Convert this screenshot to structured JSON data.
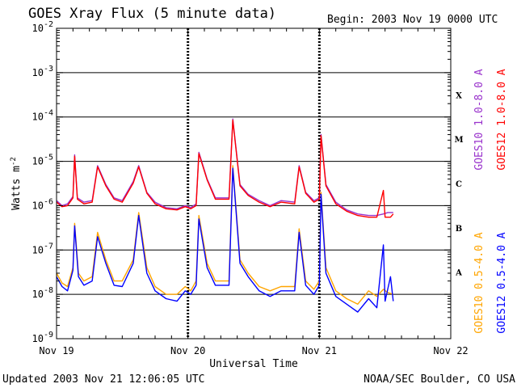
{
  "header": {
    "title": "GOES Xray Flux (5 minute data)",
    "begin": "Begin:  2003 Nov 19 0000 UTC"
  },
  "footer": {
    "updated": "Updated 2003 Nov 21 12:06:05 UTC",
    "credit": "NOAA/SEC Boulder, CO USA"
  },
  "chart_data": {
    "type": "line",
    "title": "GOES Xray Flux (5 minute data)",
    "xlabel": "Universal Time",
    "ylabel_base": "Watts m",
    "ylabel_exp": "-2",
    "scale": "log",
    "ylim": [
      1e-09,
      0.01
    ],
    "xlim_hours": [
      0,
      72
    ],
    "y_ticks": [
      {
        "exp": -2,
        "base": "10",
        "sup": "-2"
      },
      {
        "exp": -3,
        "base": "10",
        "sup": "-3"
      },
      {
        "exp": -4,
        "base": "10",
        "sup": "-4"
      },
      {
        "exp": -5,
        "base": "10",
        "sup": "-5"
      },
      {
        "exp": -6,
        "base": "10",
        "sup": "-6"
      },
      {
        "exp": -7,
        "base": "10",
        "sup": "-7"
      },
      {
        "exp": -8,
        "base": "10",
        "sup": "-8"
      },
      {
        "exp": -9,
        "base": "10",
        "sup": "-9"
      }
    ],
    "x_ticks": [
      {
        "hour": 0,
        "label": "Nov 19"
      },
      {
        "hour": 24,
        "label": "Nov 20"
      },
      {
        "hour": 48,
        "label": "Nov 21"
      },
      {
        "hour": 72,
        "label": "Nov 22"
      }
    ],
    "flare_classes": [
      {
        "label": "X",
        "exp": -3.5
      },
      {
        "label": "M",
        "exp": -4.5
      },
      {
        "label": "C",
        "exp": -5.5
      },
      {
        "label": "B",
        "exp": -6.5
      },
      {
        "label": "A",
        "exp": -7.5
      }
    ],
    "grid": {
      "horizontal": true,
      "vertical_day_dividers": true
    },
    "legend_position": "right-vertical",
    "series": [
      {
        "name": "GOES10 1.0-8.0 A",
        "color": "#9932cc",
        "band": "long",
        "points": [
          [
            0,
            1.3e-06
          ],
          [
            1,
            1e-06
          ],
          [
            2,
            1.1e-06
          ],
          [
            3,
            1.6e-06
          ],
          [
            3.3,
            1.4e-05
          ],
          [
            3.8,
            1.5e-06
          ],
          [
            5,
            1.2e-06
          ],
          [
            6.5,
            1.3e-06
          ],
          [
            7.5,
            8e-06
          ],
          [
            9,
            3e-06
          ],
          [
            10.5,
            1.5e-06
          ],
          [
            12,
            1.3e-06
          ],
          [
            14,
            3.5e-06
          ],
          [
            15,
            8e-06
          ],
          [
            16.5,
            2e-06
          ],
          [
            18,
            1.2e-06
          ],
          [
            20,
            9e-07
          ],
          [
            22,
            8.5e-07
          ],
          [
            23.5,
            1e-06
          ],
          [
            24.5,
            9e-07
          ],
          [
            25.5,
            1.1e-06
          ],
          [
            26,
            1.6e-05
          ],
          [
            27.5,
            4e-06
          ],
          [
            29,
            1.5e-06
          ],
          [
            31.5,
            1.5e-06
          ],
          [
            32.2,
            9e-05
          ],
          [
            33.5,
            3e-06
          ],
          [
            35,
            1.8e-06
          ],
          [
            37,
            1.3e-06
          ],
          [
            39,
            1e-06
          ],
          [
            41,
            1.3e-06
          ],
          [
            43.5,
            1.2e-06
          ],
          [
            44.3,
            8e-06
          ],
          [
            45.5,
            2e-06
          ],
          [
            47,
            1.3e-06
          ],
          [
            48,
            1.5e-06
          ],
          [
            48.3,
            4e-05
          ],
          [
            49.2,
            3e-06
          ],
          [
            51,
            1.2e-06
          ],
          [
            53,
            8e-07
          ],
          [
            55,
            6.5e-07
          ],
          [
            57,
            6e-07
          ],
          [
            58.5,
            6e-07
          ],
          [
            59.7,
            6.5e-07
          ],
          [
            60.5,
            7e-07
          ],
          [
            61.5,
            7e-07
          ]
        ]
      },
      {
        "name": "GOES12 1.0-8.0 A",
        "color": "#ff0000",
        "band": "long",
        "points": [
          [
            0,
            1.2e-06
          ],
          [
            1,
            9.5e-07
          ],
          [
            2,
            1e-06
          ],
          [
            3,
            1.5e-06
          ],
          [
            3.3,
            1.3e-05
          ],
          [
            3.8,
            1.4e-06
          ],
          [
            5,
            1.1e-06
          ],
          [
            6.5,
            1.2e-06
          ],
          [
            7.5,
            7.5e-06
          ],
          [
            9,
            2.8e-06
          ],
          [
            10.5,
            1.4e-06
          ],
          [
            12,
            1.2e-06
          ],
          [
            14,
            3.2e-06
          ],
          [
            15,
            7.5e-06
          ],
          [
            16.5,
            1.9e-06
          ],
          [
            18,
            1.1e-06
          ],
          [
            20,
            8.5e-07
          ],
          [
            22,
            8e-07
          ],
          [
            23.5,
            9.5e-07
          ],
          [
            24.5,
            8.5e-07
          ],
          [
            25.5,
            1e-06
          ],
          [
            26,
            1.5e-05
          ],
          [
            27.5,
            3.8e-06
          ],
          [
            29,
            1.4e-06
          ],
          [
            31.5,
            1.4e-06
          ],
          [
            32.2,
            8.5e-05
          ],
          [
            33.5,
            2.8e-06
          ],
          [
            35,
            1.7e-06
          ],
          [
            37,
            1.2e-06
          ],
          [
            39,
            9.5e-07
          ],
          [
            41,
            1.2e-06
          ],
          [
            43.5,
            1.1e-06
          ],
          [
            44.3,
            7.5e-06
          ],
          [
            45.5,
            1.9e-06
          ],
          [
            47,
            1.2e-06
          ],
          [
            48,
            1.4e-06
          ],
          [
            48.3,
            3.8e-05
          ],
          [
            49.2,
            2.8e-06
          ],
          [
            51,
            1.1e-06
          ],
          [
            53,
            7.5e-07
          ],
          [
            55,
            6e-07
          ],
          [
            57,
            5.5e-07
          ],
          [
            58.5,
            5.5e-07
          ],
          [
            59.7,
            2.2e-06
          ],
          [
            60,
            5.5e-07
          ],
          [
            61,
            5.5e-07
          ],
          [
            61.5,
            6.5e-07
          ]
        ]
      },
      {
        "name": "GOES10 0.5-4.0 A",
        "color": "#ffa500",
        "band": "short",
        "points": [
          [
            0,
            3e-08
          ],
          [
            1,
            1.8e-08
          ],
          [
            2,
            1.5e-08
          ],
          [
            3,
            4e-08
          ],
          [
            3.3,
            4e-07
          ],
          [
            4,
            3e-08
          ],
          [
            5,
            2e-08
          ],
          [
            6.5,
            2.5e-08
          ],
          [
            7.5,
            2.5e-07
          ],
          [
            9,
            6e-08
          ],
          [
            10.5,
            2e-08
          ],
          [
            12,
            2e-08
          ],
          [
            14,
            6e-08
          ],
          [
            15,
            7e-07
          ],
          [
            16.5,
            4e-08
          ],
          [
            18,
            1.5e-08
          ],
          [
            20,
            1e-08
          ],
          [
            22,
            1e-08
          ],
          [
            23.5,
            1.5e-08
          ],
          [
            24.5,
            1.2e-08
          ],
          [
            25.5,
            2e-08
          ],
          [
            26,
            6e-07
          ],
          [
            27.5,
            5e-08
          ],
          [
            29,
            2e-08
          ],
          [
            31.5,
            2e-08
          ],
          [
            32.2,
            8e-06
          ],
          [
            33.5,
            6e-08
          ],
          [
            35,
            3e-08
          ],
          [
            37,
            1.5e-08
          ],
          [
            39,
            1.2e-08
          ],
          [
            41,
            1.5e-08
          ],
          [
            43.5,
            1.5e-08
          ],
          [
            44.3,
            3e-07
          ],
          [
            45.5,
            2e-08
          ],
          [
            47,
            1.3e-08
          ],
          [
            48,
            2e-08
          ],
          [
            48.3,
            2e-06
          ],
          [
            49.2,
            4e-08
          ],
          [
            51,
            1.2e-08
          ],
          [
            53,
            8e-09
          ],
          [
            55,
            6e-09
          ],
          [
            57,
            1.2e-08
          ],
          [
            58.5,
            9e-09
          ],
          [
            59.7,
            1.3e-08
          ],
          [
            60.5,
            1.1e-08
          ],
          [
            61.5,
            1e-08
          ]
        ]
      },
      {
        "name": "GOES12 0.5-4.0 A",
        "color": "#0000ff",
        "band": "short",
        "points": [
          [
            0,
            2.5e-08
          ],
          [
            1,
            1.5e-08
          ],
          [
            2,
            1.2e-08
          ],
          [
            3,
            3.5e-08
          ],
          [
            3.3,
            3.5e-07
          ],
          [
            4,
            2.5e-08
          ],
          [
            5,
            1.6e-08
          ],
          [
            6.5,
            2e-08
          ],
          [
            7.5,
            2e-07
          ],
          [
            9,
            5e-08
          ],
          [
            10.5,
            1.6e-08
          ],
          [
            12,
            1.5e-08
          ],
          [
            14,
            5e-08
          ],
          [
            15,
            6e-07
          ],
          [
            16.5,
            3e-08
          ],
          [
            18,
            1.2e-08
          ],
          [
            20,
            8e-09
          ],
          [
            22,
            7e-09
          ],
          [
            23.5,
            1.2e-08
          ],
          [
            24.5,
            1e-08
          ],
          [
            25.5,
            1.6e-08
          ],
          [
            26,
            5e-07
          ],
          [
            27.5,
            4e-08
          ],
          [
            29,
            1.6e-08
          ],
          [
            31.5,
            1.6e-08
          ],
          [
            32.2,
            7e-06
          ],
          [
            33.5,
            5e-08
          ],
          [
            35,
            2.5e-08
          ],
          [
            37,
            1.2e-08
          ],
          [
            39,
            9e-09
          ],
          [
            41,
            1.2e-08
          ],
          [
            43.5,
            1.2e-08
          ],
          [
            44.3,
            2.5e-07
          ],
          [
            45.5,
            1.6e-08
          ],
          [
            47,
            1e-08
          ],
          [
            48,
            1.6e-08
          ],
          [
            48.3,
            1.8e-06
          ],
          [
            49.2,
            3e-08
          ],
          [
            51,
            9e-09
          ],
          [
            53,
            6e-09
          ],
          [
            55,
            4e-09
          ],
          [
            57,
            8e-09
          ],
          [
            58.5,
            5e-09
          ],
          [
            59.7,
            1.3e-07
          ],
          [
            60,
            7e-09
          ],
          [
            61,
            2.5e-08
          ],
          [
            61.5,
            7e-09
          ]
        ]
      }
    ]
  }
}
